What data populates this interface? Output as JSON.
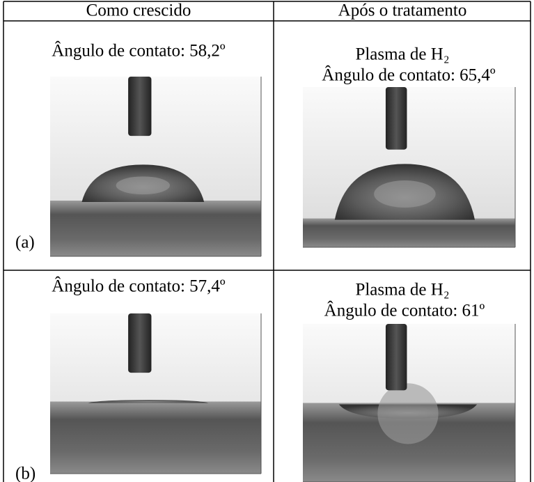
{
  "table": {
    "header": [
      "Como crescido",
      "Após o tratamento"
    ],
    "rows": [
      [
        {
          "lines": [
            "Ângulo de contato: 58,2º"
          ],
          "label": "(a)"
        },
        {
          "lines": [
            "Plasma de H₂",
            "Ângulo de contato: 65,4º"
          ]
        }
      ],
      [
        {
          "lines": [
            "Ângulo de contato: 57,4º"
          ],
          "label": "(b)"
        },
        {
          "lines": [
            "Plasma de H₂",
            "Ângulo de contato: 61º"
          ]
        }
      ]
    ]
  }
}
